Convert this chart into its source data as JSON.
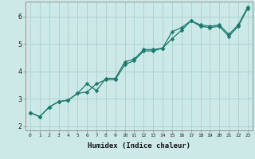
{
  "xlabel": "Humidex (Indice chaleur)",
  "background_color": "#cce9e8",
  "grid_color": "#aacfce",
  "line_color": "#1a7a6e",
  "xlim": [
    -0.5,
    23.5
  ],
  "ylim": [
    1.85,
    6.55
  ],
  "x_ticks": [
    0,
    1,
    2,
    3,
    4,
    5,
    6,
    7,
    8,
    9,
    10,
    11,
    12,
    13,
    14,
    15,
    16,
    17,
    18,
    19,
    20,
    21,
    22,
    23
  ],
  "y_ticks": [
    2,
    3,
    4,
    5,
    6
  ],
  "series1_x": [
    0,
    1,
    2,
    3,
    4,
    5,
    6,
    7,
    8,
    9,
    10,
    11,
    12,
    13,
    14,
    15,
    16,
    17,
    18,
    19,
    20,
    21,
    22,
    23
  ],
  "series1_y": [
    2.5,
    2.35,
    2.7,
    2.9,
    2.95,
    3.2,
    3.55,
    3.3,
    3.75,
    3.75,
    4.35,
    4.45,
    4.8,
    4.8,
    4.85,
    5.45,
    5.6,
    5.85,
    5.7,
    5.65,
    5.7,
    5.35,
    5.7,
    6.35
  ],
  "series2_x": [
    0,
    1,
    2,
    3,
    4,
    5,
    6,
    7,
    8,
    9,
    10,
    11,
    12,
    13,
    14,
    15,
    16,
    17,
    18,
    19,
    20,
    21,
    22,
    23
  ],
  "series2_y": [
    2.5,
    2.35,
    2.7,
    2.9,
    2.95,
    3.2,
    3.25,
    3.55,
    3.7,
    3.7,
    4.25,
    4.4,
    4.75,
    4.75,
    4.85,
    5.2,
    5.5,
    5.85,
    5.65,
    5.6,
    5.65,
    5.28,
    5.65,
    6.3
  ],
  "marker_size": 2.5,
  "line_width": 0.9,
  "tick_fontsize_x": 4.5,
  "tick_fontsize_y": 6.0,
  "xlabel_fontsize": 6.5
}
